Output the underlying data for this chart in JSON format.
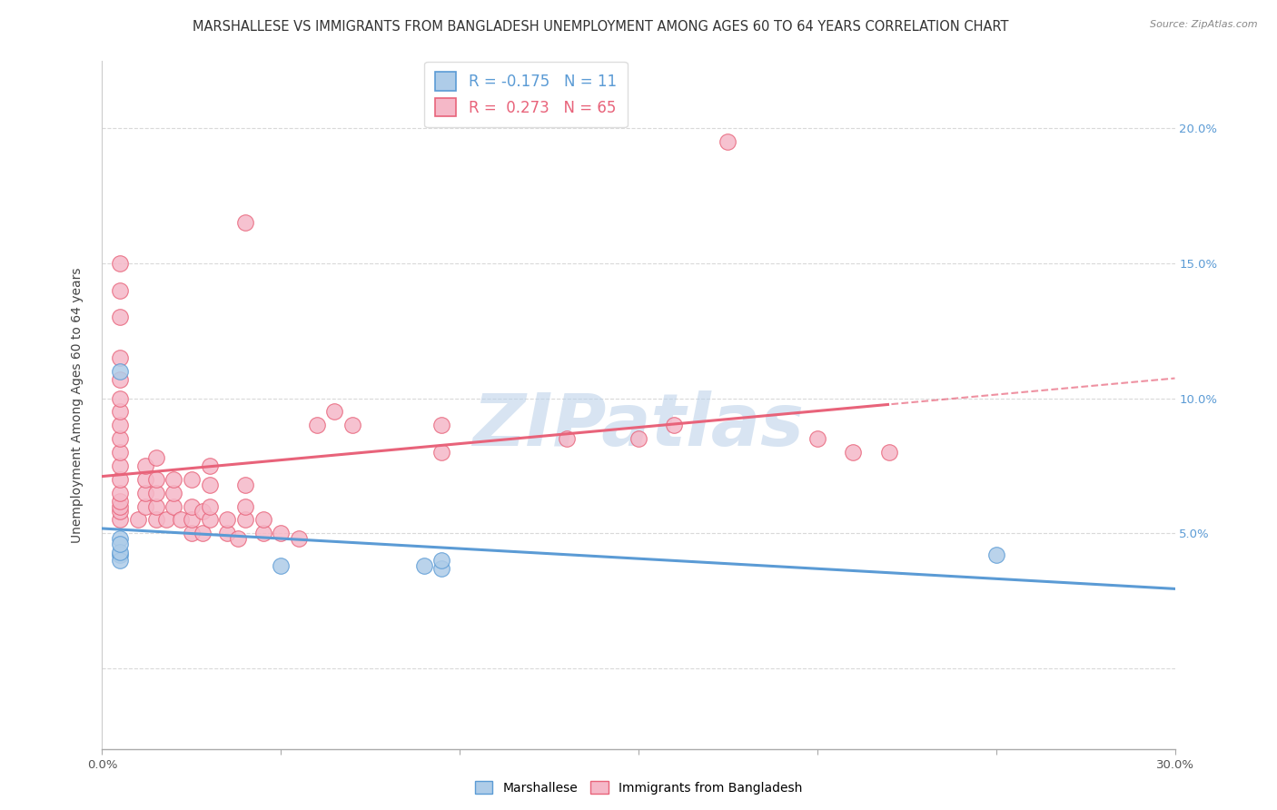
{
  "title": "MARSHALLESE VS IMMIGRANTS FROM BANGLADESH UNEMPLOYMENT AMONG AGES 60 TO 64 YEARS CORRELATION CHART",
  "source": "Source: ZipAtlas.com",
  "ylabel": "Unemployment Among Ages 60 to 64 years",
  "xlim": [
    0.0,
    0.3
  ],
  "ylim": [
    -0.03,
    0.225
  ],
  "xticks": [
    0.0,
    0.05,
    0.1,
    0.15,
    0.2,
    0.25,
    0.3
  ],
  "xtick_labels": [
    "0.0%",
    "",
    "",
    "",
    "",
    "",
    "30.0%"
  ],
  "ytick_positions": [
    0.0,
    0.05,
    0.1,
    0.15,
    0.2
  ],
  "ytick_labels_right": [
    "",
    "5.0%",
    "10.0%",
    "15.0%",
    "20.0%"
  ],
  "blue_R": -0.175,
  "blue_N": 11,
  "pink_R": 0.273,
  "pink_N": 65,
  "blue_color": "#aecce8",
  "pink_color": "#f5b8c8",
  "blue_line_color": "#5b9bd5",
  "pink_line_color": "#e8637a",
  "blue_scatter": [
    [
      0.005,
      0.048
    ],
    [
      0.005,
      0.042
    ],
    [
      0.005,
      0.04
    ],
    [
      0.005,
      0.043
    ],
    [
      0.005,
      0.046
    ],
    [
      0.005,
      0.11
    ],
    [
      0.05,
      0.038
    ],
    [
      0.09,
      0.038
    ],
    [
      0.095,
      0.037
    ],
    [
      0.095,
      0.04
    ],
    [
      0.25,
      0.042
    ]
  ],
  "pink_scatter": [
    [
      0.005,
      0.055
    ],
    [
      0.005,
      0.058
    ],
    [
      0.005,
      0.06
    ],
    [
      0.005,
      0.062
    ],
    [
      0.005,
      0.065
    ],
    [
      0.005,
      0.07
    ],
    [
      0.005,
      0.075
    ],
    [
      0.005,
      0.08
    ],
    [
      0.005,
      0.085
    ],
    [
      0.005,
      0.09
    ],
    [
      0.005,
      0.095
    ],
    [
      0.005,
      0.1
    ],
    [
      0.005,
      0.107
    ],
    [
      0.005,
      0.115
    ],
    [
      0.005,
      0.13
    ],
    [
      0.005,
      0.14
    ],
    [
      0.005,
      0.15
    ],
    [
      0.01,
      0.055
    ],
    [
      0.012,
      0.06
    ],
    [
      0.012,
      0.065
    ],
    [
      0.012,
      0.07
    ],
    [
      0.012,
      0.075
    ],
    [
      0.015,
      0.055
    ],
    [
      0.015,
      0.06
    ],
    [
      0.015,
      0.065
    ],
    [
      0.015,
      0.07
    ],
    [
      0.015,
      0.078
    ],
    [
      0.018,
      0.055
    ],
    [
      0.02,
      0.06
    ],
    [
      0.02,
      0.065
    ],
    [
      0.02,
      0.07
    ],
    [
      0.022,
      0.055
    ],
    [
      0.025,
      0.05
    ],
    [
      0.025,
      0.055
    ],
    [
      0.025,
      0.06
    ],
    [
      0.025,
      0.07
    ],
    [
      0.028,
      0.05
    ],
    [
      0.028,
      0.058
    ],
    [
      0.03,
      0.055
    ],
    [
      0.03,
      0.06
    ],
    [
      0.03,
      0.068
    ],
    [
      0.03,
      0.075
    ],
    [
      0.035,
      0.05
    ],
    [
      0.035,
      0.055
    ],
    [
      0.038,
      0.048
    ],
    [
      0.04,
      0.055
    ],
    [
      0.04,
      0.06
    ],
    [
      0.04,
      0.068
    ],
    [
      0.04,
      0.165
    ],
    [
      0.045,
      0.05
    ],
    [
      0.045,
      0.055
    ],
    [
      0.05,
      0.05
    ],
    [
      0.055,
      0.048
    ],
    [
      0.06,
      0.09
    ],
    [
      0.065,
      0.095
    ],
    [
      0.07,
      0.09
    ],
    [
      0.095,
      0.09
    ],
    [
      0.095,
      0.08
    ],
    [
      0.13,
      0.085
    ],
    [
      0.15,
      0.085
    ],
    [
      0.16,
      0.09
    ],
    [
      0.175,
      0.195
    ],
    [
      0.2,
      0.085
    ],
    [
      0.21,
      0.08
    ],
    [
      0.22,
      0.08
    ]
  ],
  "watermark": "ZIPatlas",
  "legend_entries": [
    "Marshallese",
    "Immigrants from Bangladesh"
  ],
  "title_fontsize": 10.5,
  "axis_fontsize": 10,
  "tick_fontsize": 9.5
}
